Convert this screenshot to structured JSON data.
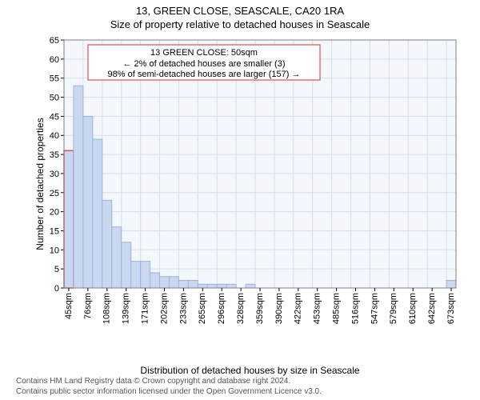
{
  "header": {
    "title1": "13, GREEN CLOSE, SEASCALE, CA20 1RA",
    "title2": "Size of property relative to detached houses in Seascale"
  },
  "chart": {
    "type": "histogram",
    "background_color": "#f4f7fc",
    "grid_color": "#d9dfeb",
    "plot_border_color": "#808080",
    "bar_fill": "#c9d7f0",
    "bar_stroke": "#9fb4dd",
    "highlight_stroke": "#d9534f",
    "ylabel": "Number of detached properties",
    "xlabel": "Distribution of detached houses by size in Seascale",
    "ylim": [
      0,
      65
    ],
    "ytick_step": 5,
    "axis_font_size": 11,
    "label_font_size": 12,
    "x_categories": [
      "45sqm",
      "76sqm",
      "108sqm",
      "139sqm",
      "171sqm",
      "202sqm",
      "233sqm",
      "265sqm",
      "296sqm",
      "328sqm",
      "359sqm",
      "390sqm",
      "422sqm",
      "453sqm",
      "485sqm",
      "516sqm",
      "547sqm",
      "579sqm",
      "610sqm",
      "642sqm",
      "673sqm"
    ],
    "n_bars": 41,
    "values": [
      36,
      53,
      45,
      39,
      23,
      16,
      12,
      7,
      7,
      4,
      3,
      3,
      2,
      2,
      1,
      1,
      1,
      1,
      0,
      1,
      0,
      0,
      0,
      0,
      0,
      0,
      0,
      0,
      0,
      0,
      0,
      0,
      0,
      0,
      0,
      0,
      0,
      0,
      0,
      0,
      2
    ],
    "highlight_index": 0,
    "annotation": {
      "line1": "13 GREEN CLOSE: 50sqm",
      "line2": "← 2% of detached houses are smaller (3)",
      "line3": "98% of semi-detached houses are larger (157) →",
      "border_color": "#d9534f",
      "bg": "#ffffff",
      "font_size": 11
    }
  },
  "footer": {
    "line1": "Contains HM Land Registry data © Crown copyright and database right 2024.",
    "line2": "Contains public sector information licensed under the Open Government Licence v3.0."
  }
}
